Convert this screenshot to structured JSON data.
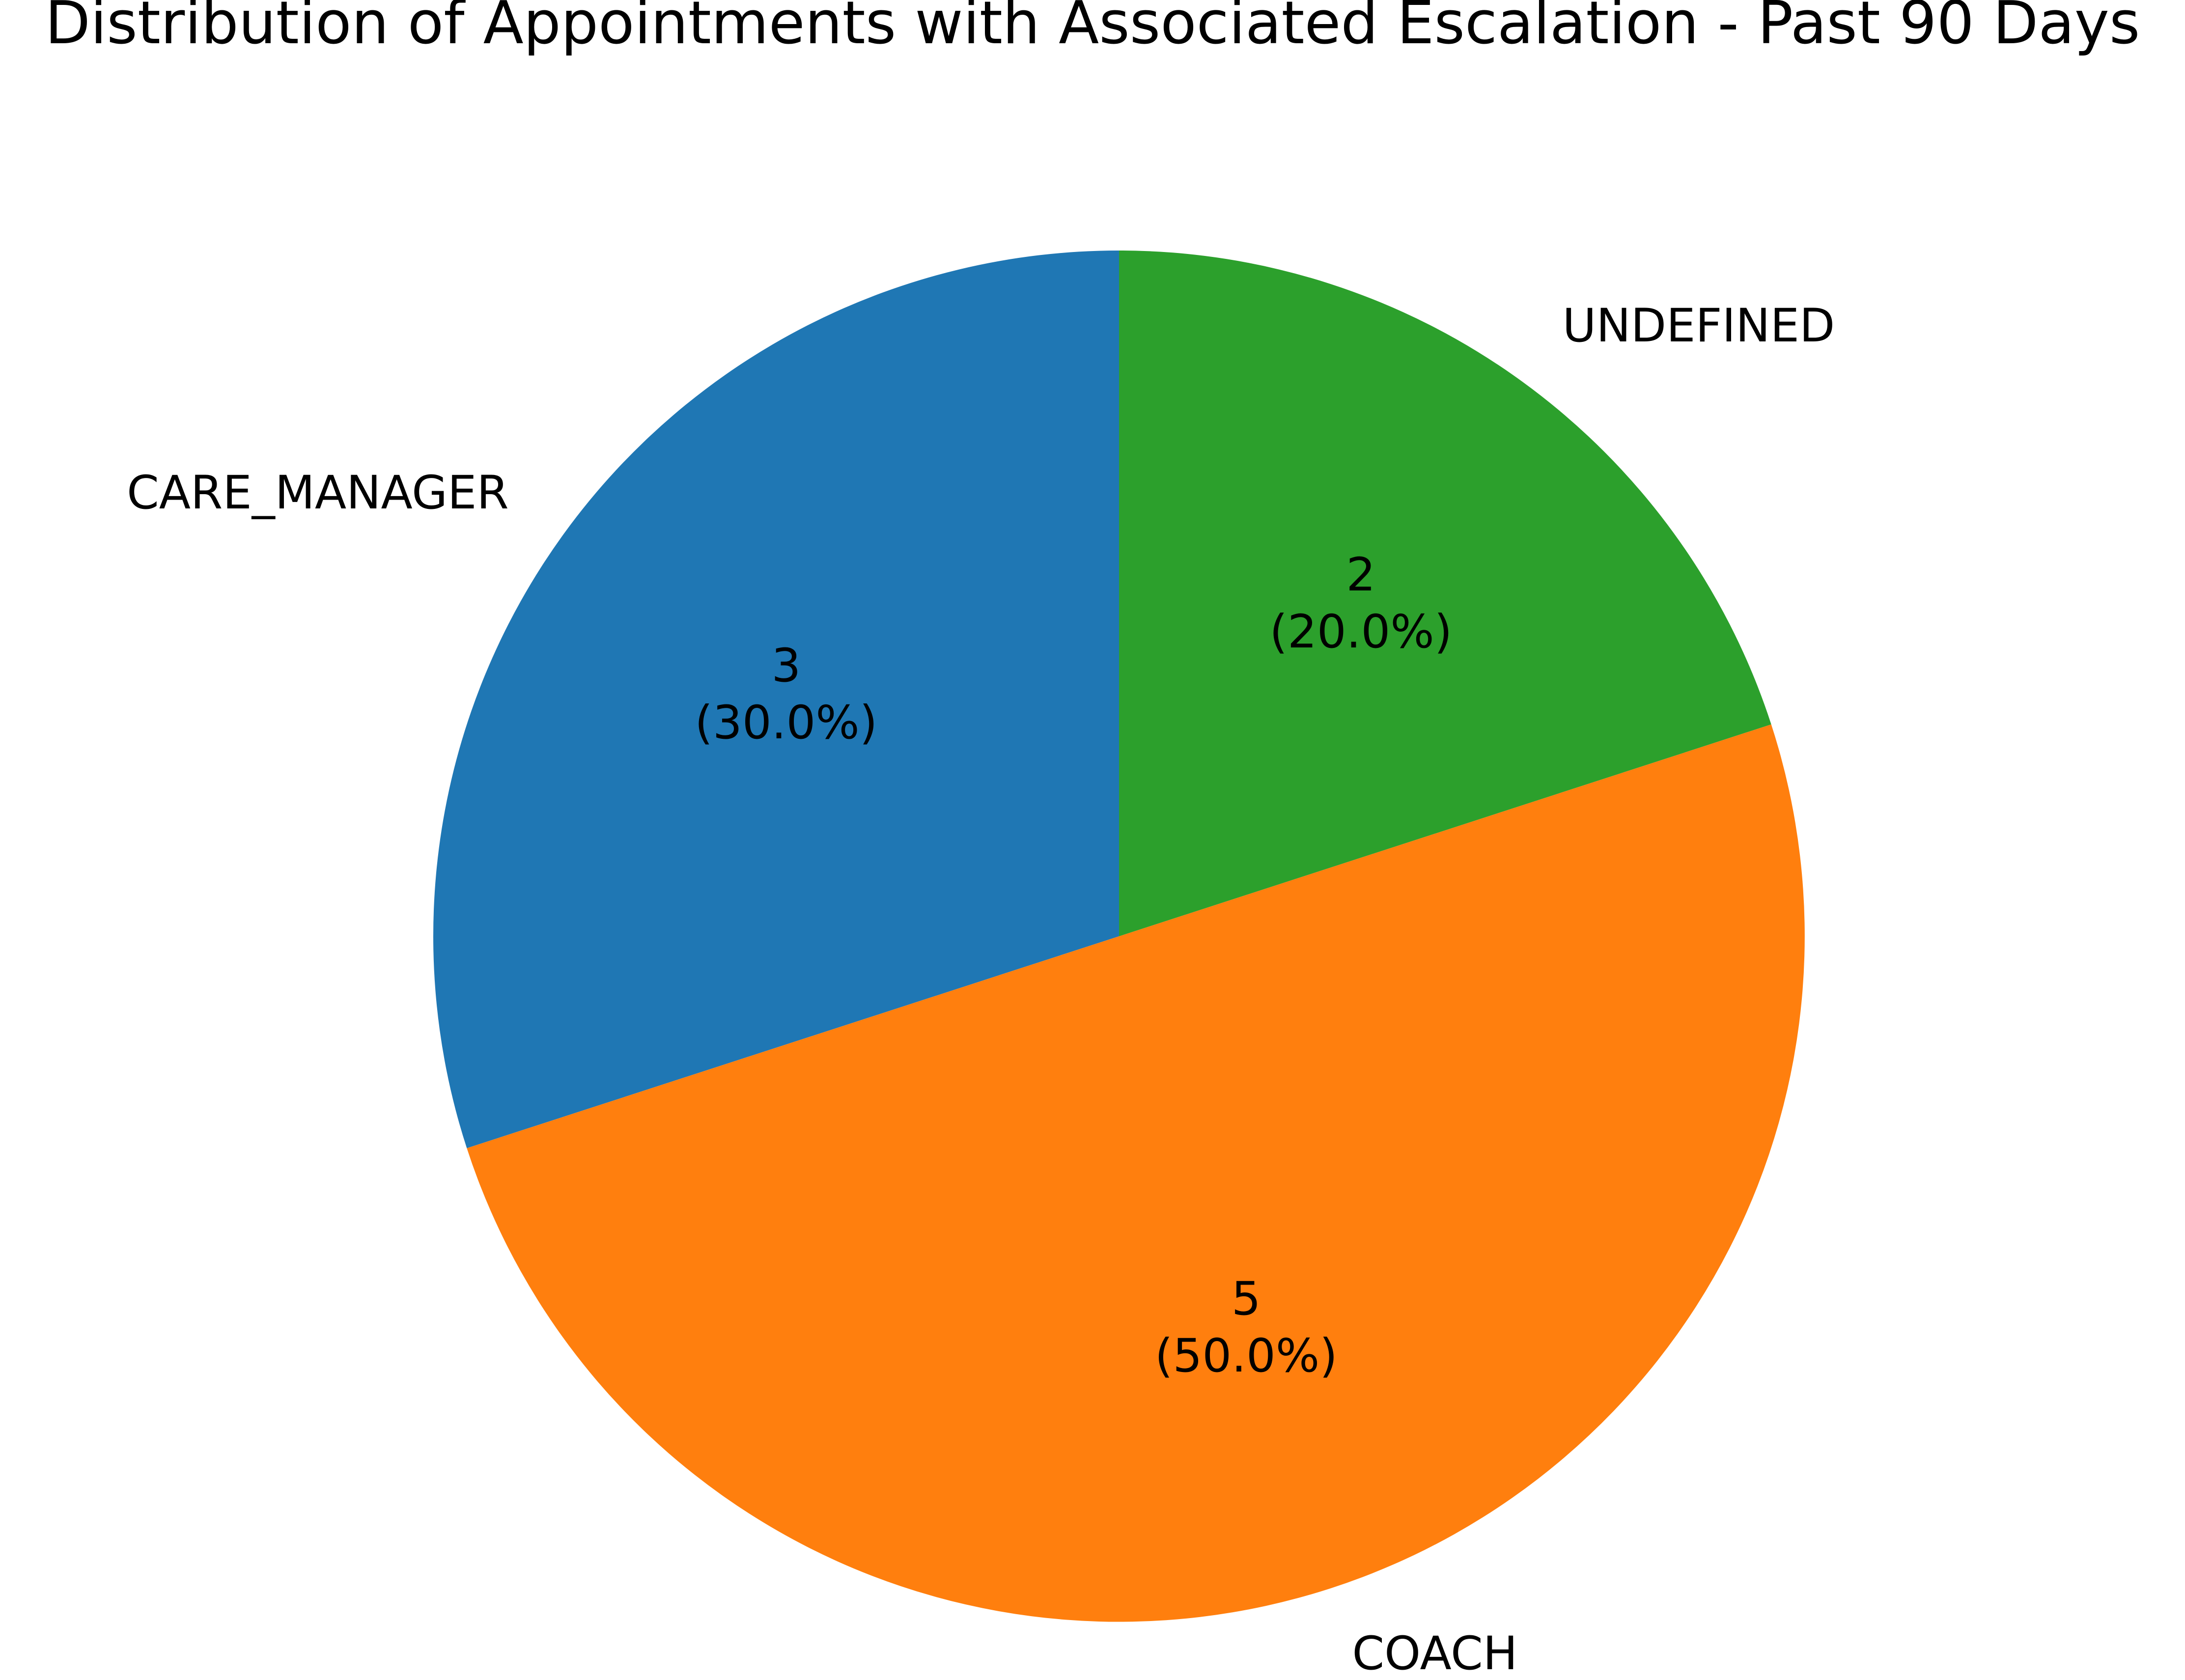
{
  "chart_data": {
    "type": "pie",
    "title": "Distribution of Appointments with Associated Escalation - Past 90 Days",
    "categories": [
      "CARE_MANAGER",
      "COACH",
      "UNDEFINED"
    ],
    "values": [
      3,
      5,
      2
    ],
    "percent_labels": [
      "(30.0%)",
      "(50.0%)",
      "(20.0%)"
    ],
    "colors": [
      "#1f77b4",
      "#ff7f0e",
      "#2ca02c"
    ],
    "start_angle_deg": 90,
    "direction": "counterclockwise",
    "legend": "none"
  }
}
